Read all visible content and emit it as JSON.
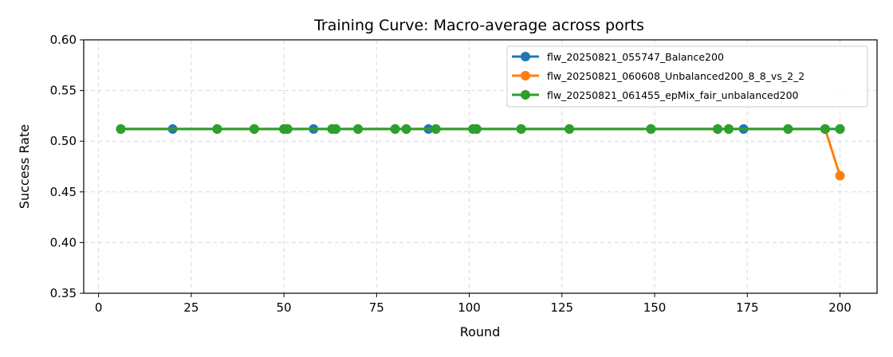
{
  "chart_data": {
    "type": "line",
    "title": "Training Curve: Macro-average across ports",
    "xlabel": "Round",
    "ylabel": "Success Rate",
    "xlim": [
      -4,
      210
    ],
    "ylim": [
      0.35,
      0.6
    ],
    "xticks": [
      0,
      25,
      50,
      75,
      100,
      125,
      150,
      175,
      200
    ],
    "yticks": [
      0.35,
      0.4,
      0.45,
      0.5,
      0.55,
      0.6
    ],
    "xtick_labels": [
      "0",
      "25",
      "50",
      "75",
      "100",
      "125",
      "150",
      "175",
      "200"
    ],
    "ytick_labels": [
      "0.35",
      "0.40",
      "0.45",
      "0.50",
      "0.55",
      "0.60"
    ],
    "grid": true,
    "legend_position": "top-right",
    "series": [
      {
        "name": "flw_20250821_055747_Balance200",
        "color": "#1f77b4",
        "x": [
          6,
          20,
          32,
          42,
          50,
          51,
          58,
          63,
          64,
          70,
          80,
          83,
          89,
          91,
          101,
          102,
          114,
          127,
          149,
          167,
          170,
          174,
          186,
          196,
          200
        ],
        "y": [
          0.512,
          0.512,
          0.512,
          0.512,
          0.512,
          0.512,
          0.512,
          0.512,
          0.512,
          0.512,
          0.512,
          0.512,
          0.512,
          0.512,
          0.512,
          0.512,
          0.512,
          0.512,
          0.512,
          0.512,
          0.512,
          0.512,
          0.512,
          0.512,
          0.512
        ]
      },
      {
        "name": "flw_20250821_060608_Unbalanced200_8_8_vs_2_2",
        "color": "#ff7f0e",
        "x": [
          6,
          32,
          42,
          50,
          63,
          70,
          80,
          83,
          101,
          114,
          127,
          149,
          167,
          170,
          186,
          196,
          200
        ],
        "y": [
          0.512,
          0.512,
          0.512,
          0.512,
          0.512,
          0.512,
          0.512,
          0.512,
          0.512,
          0.512,
          0.512,
          0.512,
          0.512,
          0.512,
          0.512,
          0.512,
          0.466
        ]
      },
      {
        "name": "flw_20250821_061455_epMix_fair_unbalanced200",
        "color": "#2ca02c",
        "x": [
          6,
          32,
          42,
          50,
          51,
          63,
          64,
          70,
          80,
          83,
          91,
          101,
          102,
          114,
          127,
          149,
          167,
          170,
          186,
          196,
          200
        ],
        "y": [
          0.512,
          0.512,
          0.512,
          0.512,
          0.512,
          0.512,
          0.512,
          0.512,
          0.512,
          0.512,
          0.512,
          0.512,
          0.512,
          0.512,
          0.512,
          0.512,
          0.512,
          0.512,
          0.512,
          0.512,
          0.512
        ]
      }
    ]
  }
}
